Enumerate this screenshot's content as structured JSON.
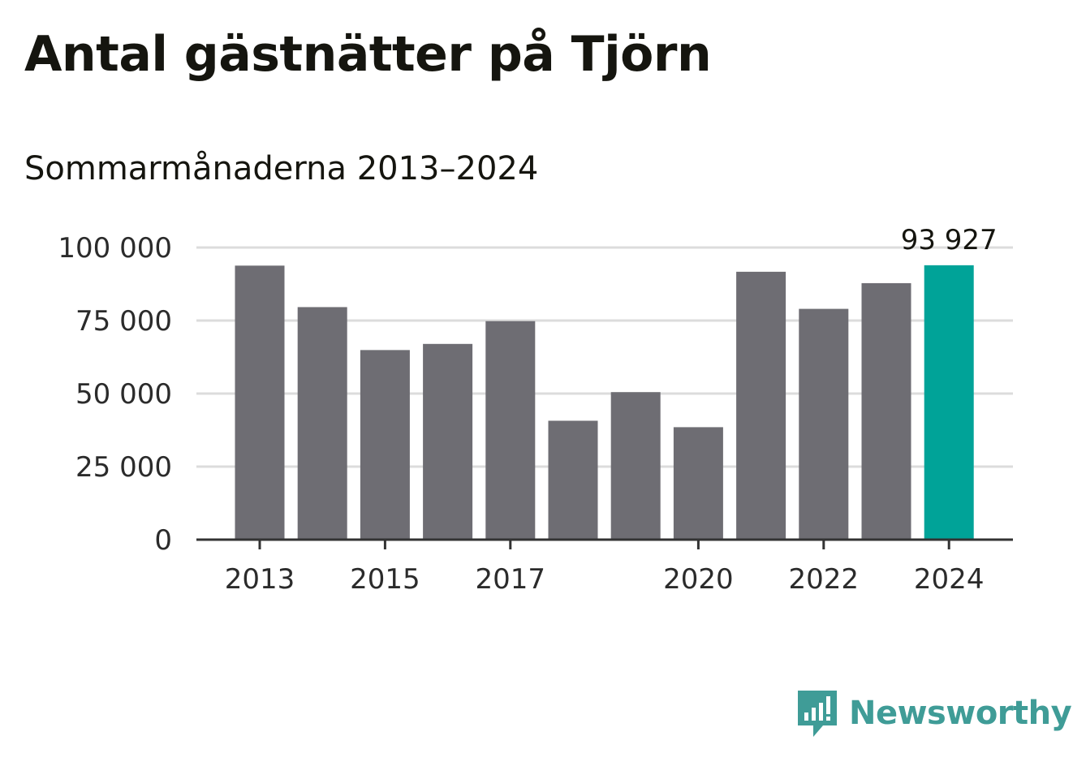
{
  "title": "Antal gästnätter på Tjörn",
  "subtitle": "Sommarmånaderna 2013–2024",
  "brand": {
    "name": "Newsworthy",
    "icon": "newsworthy-logo-icon"
  },
  "colors": {
    "bar": "#6e6d73",
    "highlight": "#00a398",
    "grid": "#dcdcdc",
    "axis": "#333333",
    "brand": "#3f9c97"
  },
  "chart_data": {
    "type": "bar",
    "categories": [
      "2013",
      "2014",
      "2015",
      "2016",
      "2017",
      "2018",
      "2019",
      "2020",
      "2021",
      "2022",
      "2023",
      "2024"
    ],
    "values": [
      93800,
      79600,
      64900,
      67000,
      74800,
      40700,
      50500,
      38500,
      91700,
      79000,
      87800,
      93927
    ],
    "x_tick_labels": [
      "2013",
      "",
      "2015",
      "",
      "2017",
      "",
      "",
      "2020",
      "",
      "2022",
      "",
      "2024"
    ],
    "y_ticks": [
      0,
      25000,
      50000,
      75000,
      100000
    ],
    "y_tick_labels": [
      "0",
      "25 000",
      "50 000",
      "75 000",
      "100 000"
    ],
    "ylim": [
      0,
      100000
    ],
    "highlight_index": 11,
    "annotation": {
      "index": 11,
      "label": "93 927"
    },
    "grid": true
  }
}
